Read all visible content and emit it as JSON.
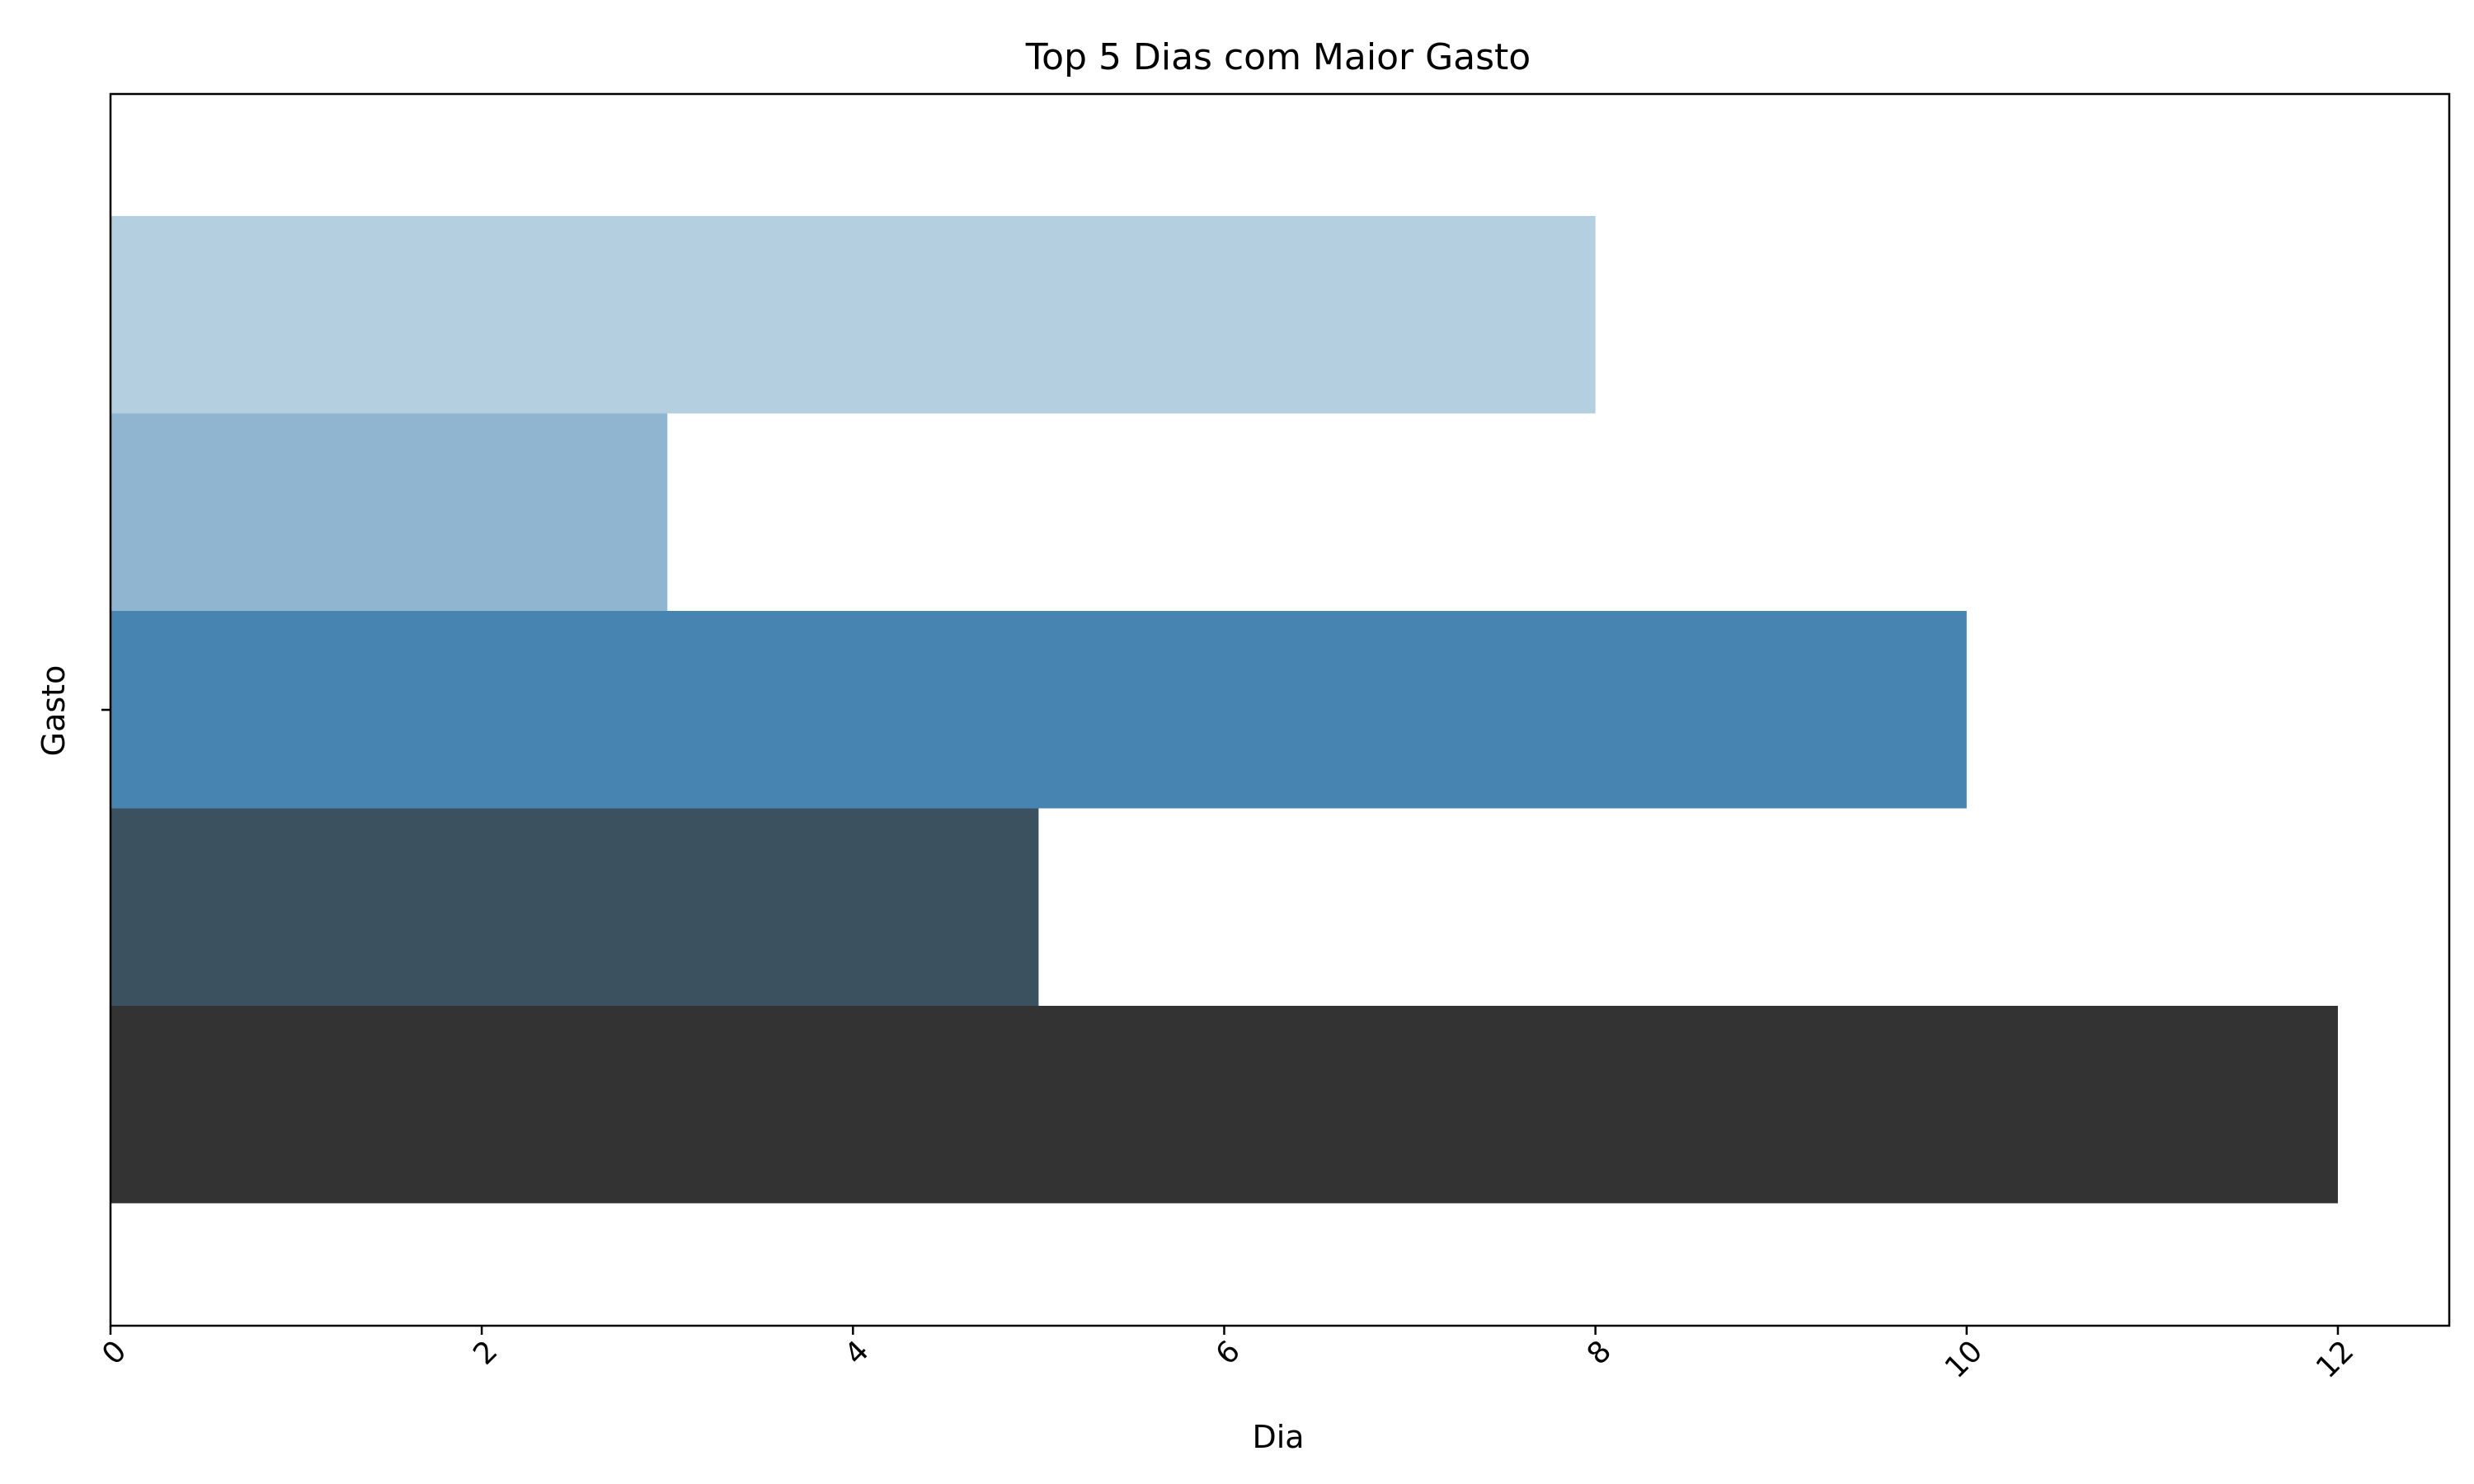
{
  "chart_data": {
    "type": "bar",
    "orientation": "horizontal",
    "title": "Top 5 Dias com Maior Gasto",
    "xlabel": "Dia",
    "ylabel": "Gasto",
    "xlim": [
      0,
      12.6
    ],
    "xticks": [
      "0",
      "2",
      "4",
      "6",
      "8",
      "10",
      "12"
    ],
    "xtick_rotation_deg": 45,
    "grid": false,
    "legend": "none",
    "bars": [
      {
        "value": 8,
        "color": "#b3cfe0"
      },
      {
        "value": 3,
        "color": "#90b5d0"
      },
      {
        "value": 10,
        "color": "#4884b1"
      },
      {
        "value": 5,
        "color": "#3c515f"
      },
      {
        "value": 12,
        "color": "#333333"
      }
    ]
  }
}
